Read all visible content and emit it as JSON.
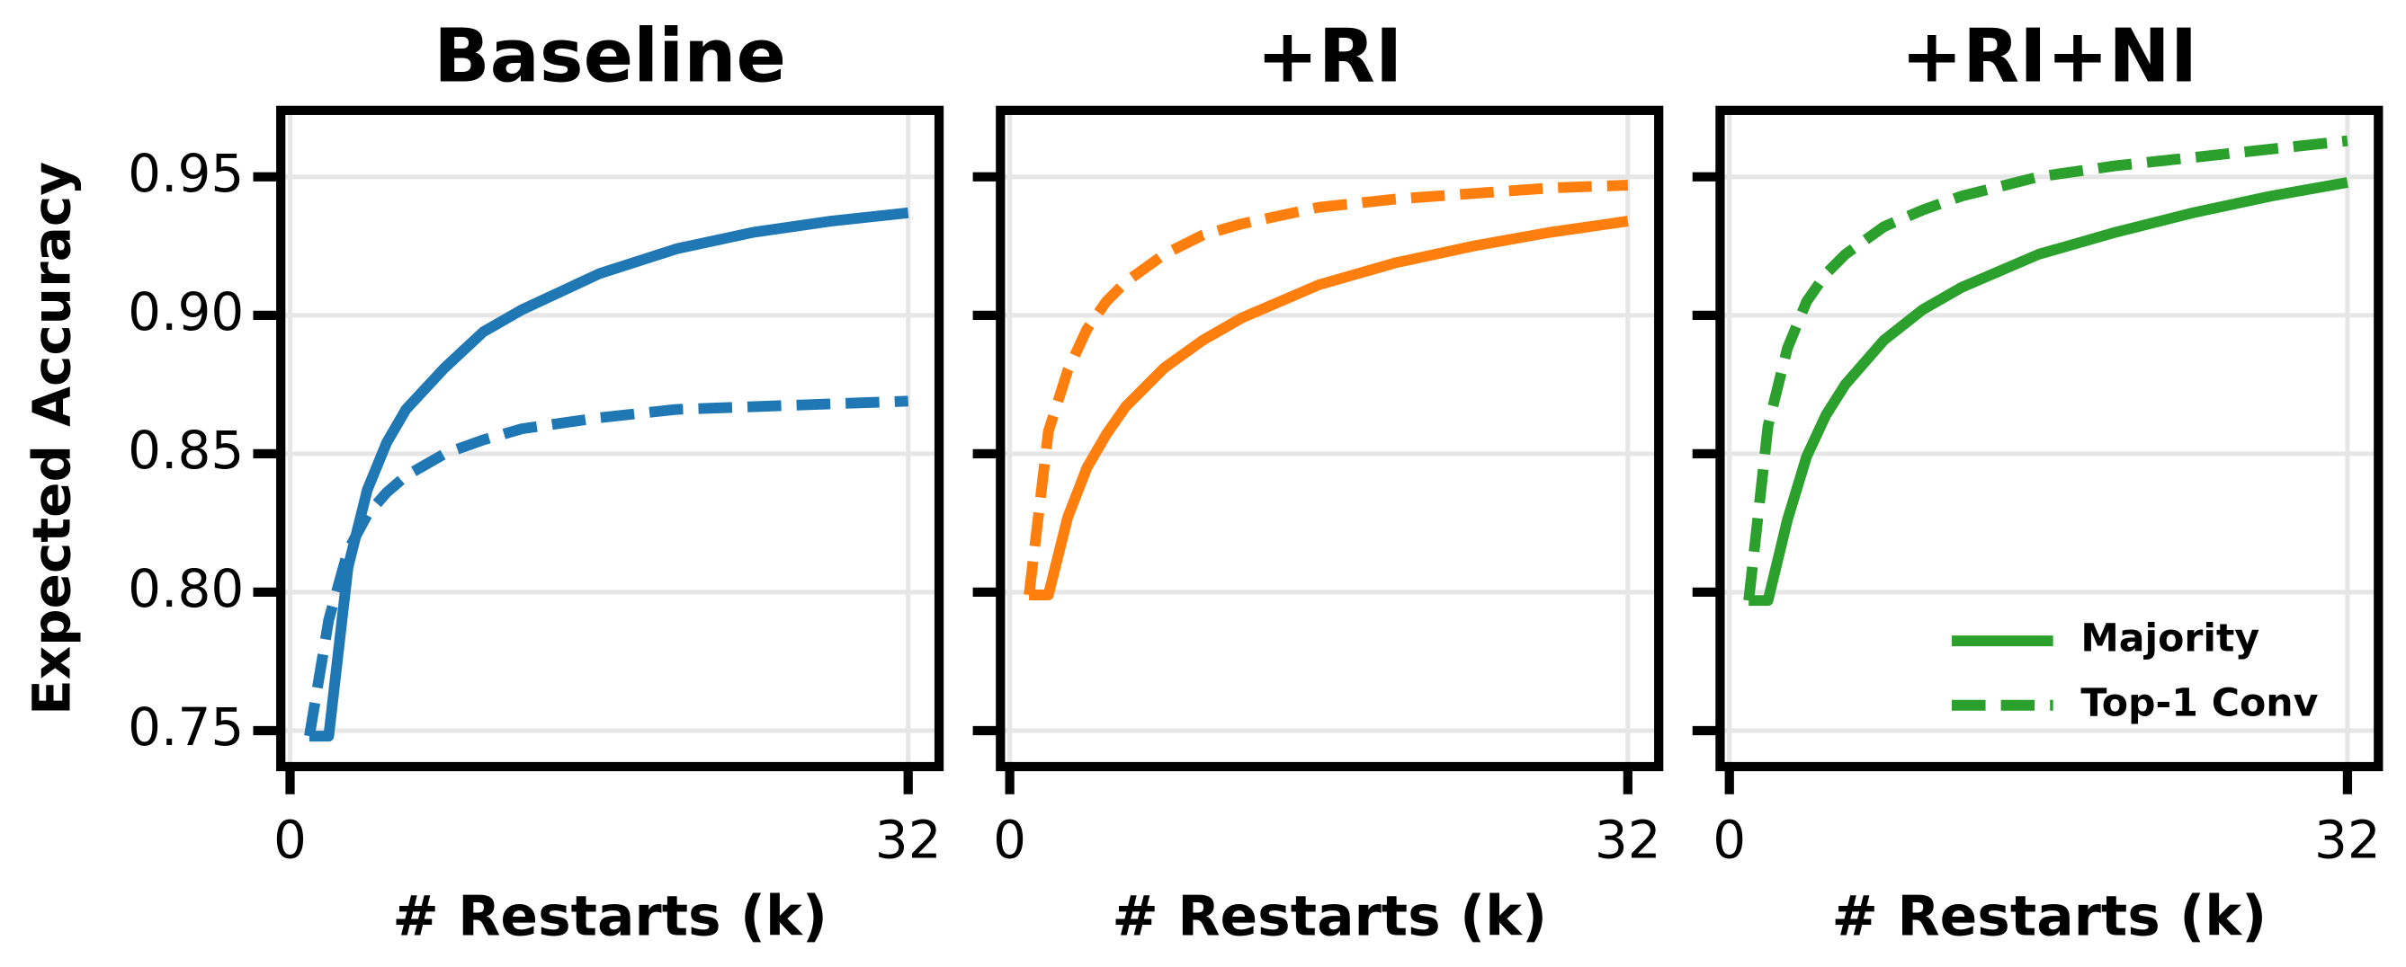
{
  "chart_data": [
    {
      "type": "line",
      "title": "Baseline",
      "xlabel": "# Restarts (k)",
      "ylabel": "Expected Accuracy",
      "x": [
        1,
        2,
        3,
        4,
        5,
        6,
        8,
        10,
        12,
        16,
        20,
        24,
        28,
        32
      ],
      "series": [
        {
          "color": "#1f77b4",
          "linestyle": "solid",
          "values": [
            0.748,
            0.748,
            0.809,
            0.837,
            0.854,
            0.866,
            0.881,
            0.894,
            0.902,
            0.915,
            0.924,
            0.93,
            0.934,
            0.937
          ]
        },
        {
          "color": "#1f77b4",
          "linestyle": "dashed",
          "values": [
            0.748,
            0.79,
            0.815,
            0.828,
            0.836,
            0.842,
            0.85,
            0.855,
            0.859,
            0.863,
            0.866,
            0.867,
            0.868,
            0.869
          ]
        }
      ],
      "xlim": [
        -0.48,
        33.6
      ],
      "xticks": [
        0,
        32
      ],
      "ylim": [
        0.737,
        0.974
      ],
      "yticks": [
        0.75,
        {
          "value": 0.8,
          "label": "0.80"
        },
        0.85,
        {
          "value": 0.9,
          "label": "0.90"
        },
        0.95
      ],
      "show_ytick_labels": true,
      "grid": true
    },
    {
      "type": "line",
      "title": "+RI",
      "xlabel": "# Restarts (k)",
      "x": [
        1,
        2,
        3,
        4,
        5,
        6,
        8,
        10,
        12,
        16,
        20,
        24,
        28,
        32
      ],
      "series": [
        {
          "color": "#ff7f0e",
          "linestyle": "solid",
          "values": [
            0.799,
            0.799,
            0.827,
            0.845,
            0.857,
            0.867,
            0.881,
            0.891,
            0.899,
            0.911,
            0.919,
            0.925,
            0.93,
            0.934
          ]
        },
        {
          "color": "#ff7f0e",
          "linestyle": "dashed",
          "values": [
            0.799,
            0.858,
            0.88,
            0.895,
            0.905,
            0.912,
            0.922,
            0.929,
            0.933,
            0.939,
            0.942,
            0.944,
            0.946,
            0.947
          ]
        }
      ],
      "xlim": [
        -0.48,
        33.6
      ],
      "xticks": [
        0,
        32
      ],
      "ylim": [
        0.737,
        0.974
      ],
      "yticks": [
        0.75,
        0.8,
        0.85,
        0.9,
        0.95
      ],
      "show_ytick_labels": false,
      "grid": true
    },
    {
      "type": "line",
      "title": "+RI+NI",
      "xlabel": "# Restarts (k)",
      "x": [
        1,
        2,
        3,
        4,
        5,
        6,
        8,
        10,
        12,
        16,
        20,
        24,
        28,
        32
      ],
      "series": [
        {
          "name": "Majority",
          "color": "#2ca02c",
          "linestyle": "solid",
          "values": [
            0.797,
            0.797,
            0.826,
            0.849,
            0.864,
            0.875,
            0.891,
            0.902,
            0.91,
            0.922,
            0.93,
            0.937,
            0.943,
            0.948
          ]
        },
        {
          "name": "Top-1 Conv",
          "color": "#2ca02c",
          "linestyle": "dashed",
          "values": [
            0.797,
            0.86,
            0.888,
            0.905,
            0.915,
            0.922,
            0.932,
            0.938,
            0.943,
            0.95,
            0.954,
            0.957,
            0.96,
            0.963
          ]
        }
      ],
      "xlim": [
        -0.48,
        33.6
      ],
      "xticks": [
        0,
        32
      ],
      "ylim": [
        0.737,
        0.974
      ],
      "yticks": [
        0.75,
        0.8,
        0.85,
        0.9,
        0.95
      ],
      "show_ytick_labels": false,
      "grid": true,
      "legend": "lower right"
    }
  ]
}
